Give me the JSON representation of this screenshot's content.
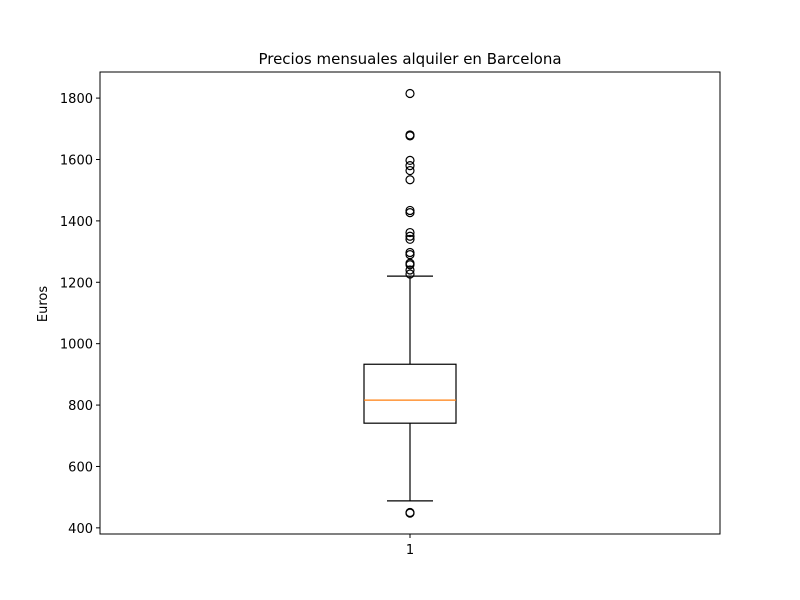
{
  "chart_data": {
    "type": "boxplot",
    "title": "Precios mensuales alquiler en Barcelona",
    "xlabel": "",
    "ylabel": "Euros",
    "categories": [
      "1"
    ],
    "ylim": [
      380,
      1885
    ],
    "yticks": [
      400,
      600,
      800,
      1000,
      1200,
      1400,
      1600,
      1800
    ],
    "grid": false,
    "boxes": [
      {
        "category": "1",
        "whisker_low": 488,
        "q1": 741,
        "median": 816,
        "q3": 933,
        "whisker_high": 1220,
        "outliers": [
          450,
          448,
          1227,
          1240,
          1257,
          1262,
          1290,
          1297,
          1340,
          1350,
          1362,
          1427,
          1434,
          1534,
          1564,
          1580,
          1597,
          1677,
          1680,
          1815
        ]
      }
    ],
    "colors": {
      "box": "#000000",
      "median": "#ff7f0e",
      "outlier": "#000000"
    }
  }
}
